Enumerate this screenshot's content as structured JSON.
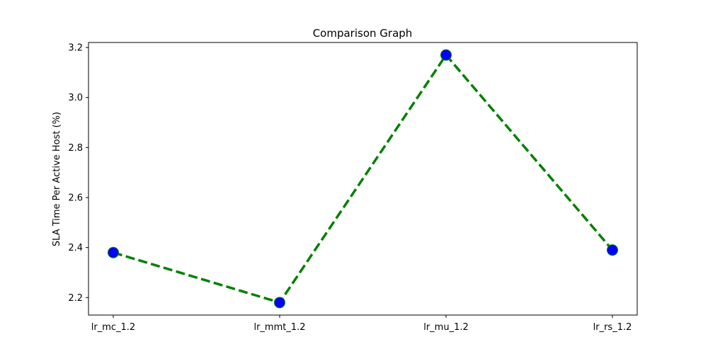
{
  "chart_data": {
    "type": "line",
    "title": "Comparison Graph",
    "xlabel": "",
    "ylabel": "SLA Time Per Active Host (%)",
    "categories": [
      "lr_mc_1.2",
      "lr_mmt_1.2",
      "lr_mu_1.2",
      "lr_rs_1.2"
    ],
    "series": [
      {
        "values": [
          2.38,
          2.18,
          3.17,
          2.39
        ],
        "line_color": "#008000",
        "line_style": "dashed",
        "marker_face_color": "#0000ff",
        "marker_edge_color": "#008000"
      }
    ],
    "ylim": [
      2.13,
      3.22
    ],
    "yticks": [
      "2.2",
      "2.4",
      "2.6",
      "2.8",
      "3.0",
      "3.2"
    ],
    "grid": false,
    "legend": "none"
  }
}
